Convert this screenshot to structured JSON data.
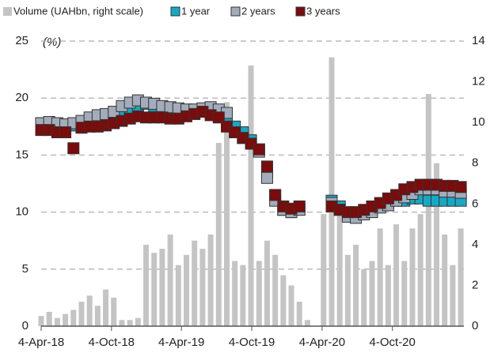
{
  "chart_data": {
    "type": "bar",
    "annotations": [
      "(%)"
    ],
    "x": [
      "2018-04-04",
      "2018-04-25",
      "2018-05-16",
      "2018-06-06",
      "2018-06-27",
      "2018-07-18",
      "2018-08-08",
      "2018-08-29",
      "2018-09-19",
      "2018-10-10",
      "2018-10-31",
      "2018-11-21",
      "2018-12-12",
      "2019-01-02",
      "2019-01-23",
      "2019-02-13",
      "2019-03-06",
      "2019-03-27",
      "2019-04-17",
      "2019-05-08",
      "2019-05-29",
      "2019-06-19",
      "2019-07-10",
      "2019-07-31",
      "2019-08-21",
      "2019-09-11",
      "2019-10-02",
      "2019-10-23",
      "2019-11-13",
      "2019-12-04",
      "2019-12-25",
      "2020-01-15",
      "2020-02-05",
      "2020-02-26",
      "2020-03-18",
      "2020-04-08",
      "2020-04-29",
      "2020-05-20",
      "2020-06-10",
      "2020-07-01",
      "2020-07-22",
      "2020-08-12",
      "2020-09-02",
      "2020-09-23",
      "2020-10-14",
      "2020-11-04",
      "2020-11-25",
      "2020-12-16",
      "2021-01-06",
      "2021-01-27",
      "2021-02-17",
      "2021-03-10",
      "2021-03-31"
    ],
    "series": [
      {
        "name": "Volume (UAHbn, right scale)",
        "type": "bar",
        "axis": "y2",
        "color": "#c4c4c4",
        "values": [
          0.5,
          0.7,
          0.4,
          0.6,
          0.8,
          1.2,
          1.5,
          1.0,
          1.8,
          1.4,
          0.3,
          0.3,
          0.4,
          4.0,
          3.6,
          3.8,
          4.5,
          3.0,
          3.5,
          4.2,
          3.8,
          4.5,
          9.0,
          11.0,
          3.2,
          3.0,
          12.8,
          3.2,
          4.2,
          3.5,
          2.5,
          2.0,
          1.2,
          0.3,
          0.0,
          5.5,
          13.2,
          6.0,
          3.5,
          4.0,
          2.8,
          3.2,
          4.8,
          3.0,
          5.0,
          3.2,
          4.8,
          5.5,
          11.4,
          8.0,
          4.5,
          3.0,
          4.8
        ]
      },
      {
        "name": "1 year",
        "type": "scatter",
        "color": "#17a8c4",
        "values": [
          17.8,
          17.8,
          17.6,
          17.5,
          17.6,
          17.8,
          18.0,
          18.1,
          18.2,
          18.3,
          18.8,
          19.0,
          19.2,
          19.5,
          19.3,
          19.2,
          19.0,
          19.0,
          18.9,
          18.8,
          18.8,
          18.7,
          18.5,
          18.0,
          17.5,
          17.0,
          16.3,
          15.5,
          13.5,
          11.5,
          10.2,
          10.0,
          10.3,
          null,
          null,
          null,
          11.0,
          10.5,
          9.8,
          9.8,
          10.0,
          10.2,
          10.5,
          10.8,
          11.0,
          11.0,
          11.2,
          11.2,
          11.0,
          11.0,
          11.0,
          11.0,
          11.0
        ]
      },
      {
        "name": "2 years",
        "type": "scatter",
        "color": "#a3acbb",
        "values": [
          17.8,
          17.9,
          17.8,
          17.7,
          17.8,
          18.0,
          18.3,
          18.5,
          18.6,
          18.8,
          19.3,
          19.6,
          19.8,
          19.6,
          19.5,
          19.3,
          19.2,
          19.1,
          19.0,
          19.0,
          19.1,
          19.2,
          19.0,
          18.7,
          17.0,
          16.5,
          16.0,
          15.3,
          13.0,
          11.0,
          10.2,
          10.0,
          10.2,
          null,
          null,
          null,
          10.8,
          10.2,
          9.6,
          9.5,
          9.8,
          10.0,
          10.4,
          10.6,
          11.0,
          11.3,
          11.6,
          12.0,
          12.0,
          12.0,
          11.8,
          11.8,
          11.7
        ]
      },
      {
        "name": "3 years",
        "type": "scatter",
        "color": "#7a0c0c",
        "values": [
          17.2,
          17.2,
          17.0,
          17.0,
          15.6,
          17.4,
          17.5,
          17.5,
          17.6,
          17.8,
          18.0,
          18.2,
          18.4,
          18.3,
          18.3,
          18.3,
          18.2,
          18.2,
          18.4,
          18.6,
          18.8,
          18.5,
          18.3,
          17.5,
          17.0,
          16.5,
          16.0,
          15.5,
          14.0,
          11.5,
          10.5,
          10.3,
          10.5,
          null,
          null,
          null,
          10.5,
          10.2,
          10.0,
          10.0,
          10.2,
          10.5,
          10.8,
          11.2,
          11.5,
          12.0,
          12.2,
          12.4,
          12.4,
          12.4,
          12.3,
          12.3,
          12.2
        ]
      }
    ],
    "xlim": [
      "2018-04-04",
      "2021-04-08"
    ],
    "xticks": [
      {
        "value": "2018-04-04",
        "label": "4-Apr-18"
      },
      {
        "value": "2018-10-04",
        "label": "4-Oct-18"
      },
      {
        "value": "2019-04-04",
        "label": "4-Apr-19"
      },
      {
        "value": "2019-10-04",
        "label": "4-Oct-19"
      },
      {
        "value": "2020-04-04",
        "label": "4-Apr-20"
      },
      {
        "value": "2020-10-04",
        "label": "4-Oct-20"
      }
    ],
    "ylim": [
      0,
      25
    ],
    "yticks": [
      0,
      5,
      10,
      15,
      20,
      25
    ],
    "y2lim": [
      0,
      14
    ],
    "y2ticks": [
      0,
      2,
      4,
      6,
      8,
      10,
      12,
      14
    ],
    "grid": true,
    "legend": "top"
  }
}
